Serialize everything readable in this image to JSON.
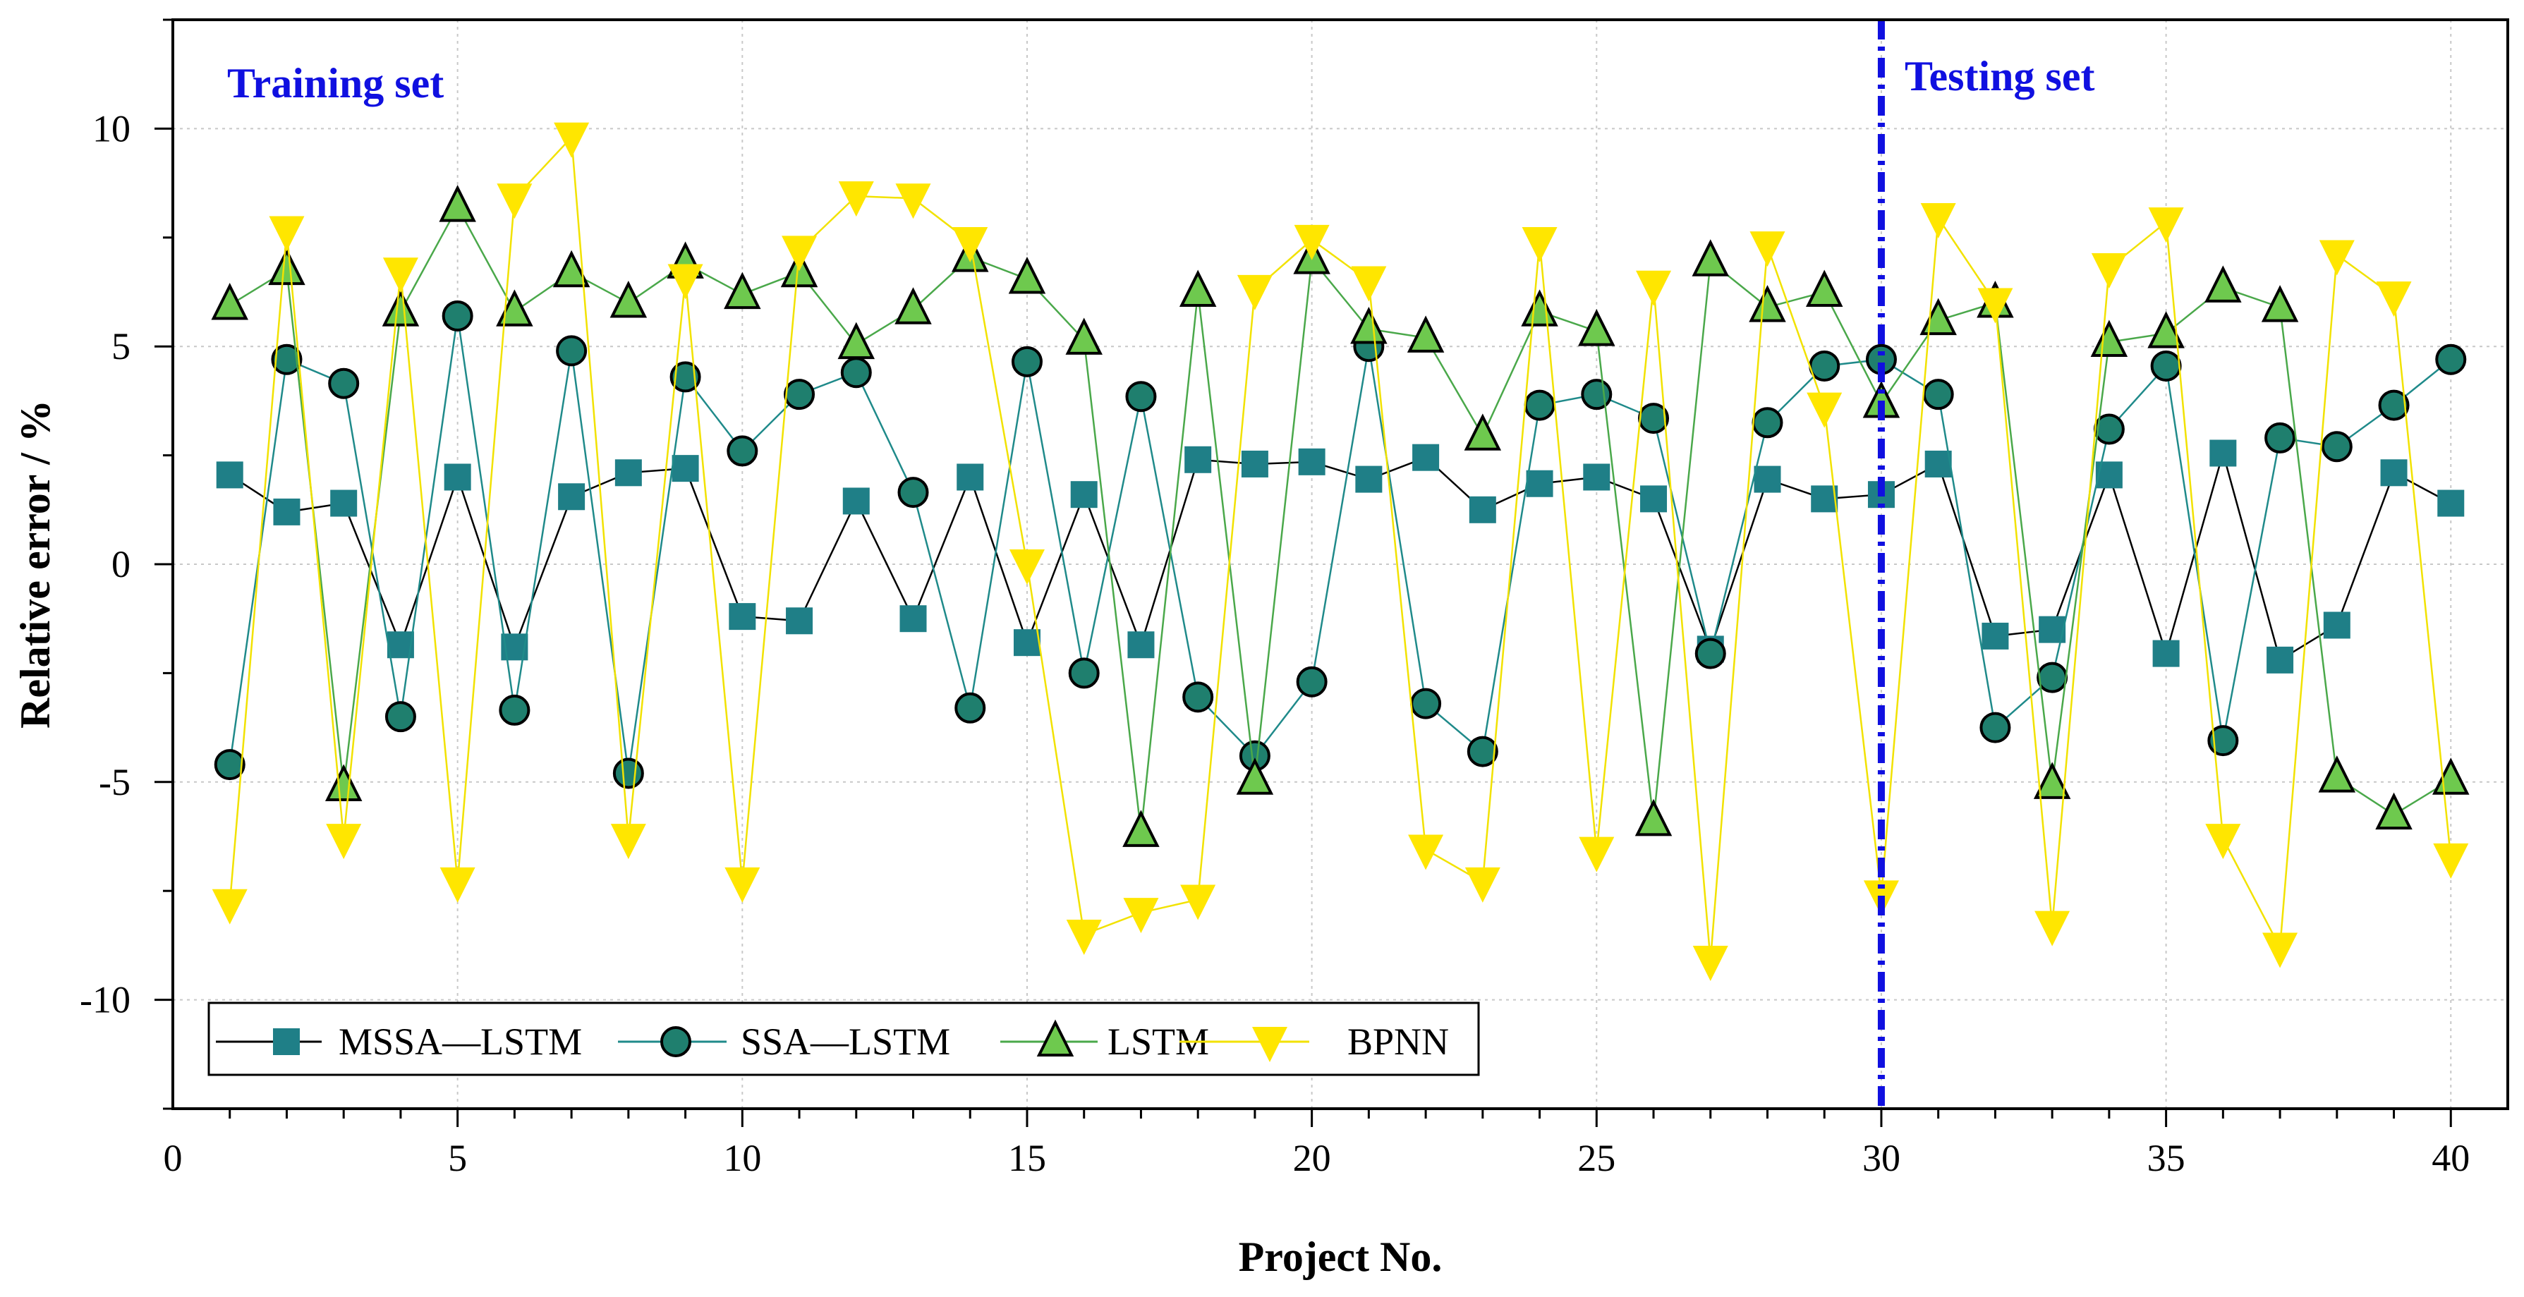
{
  "chart_data": {
    "type": "line",
    "xlabel": "Project No.",
    "ylabel": "Relative error / %",
    "xlim": [
      0,
      41
    ],
    "ylim": [
      -12.5,
      12.5
    ],
    "x_ticks": [
      0,
      5,
      10,
      15,
      20,
      25,
      30,
      35,
      40
    ],
    "y_ticks": [
      -10,
      -5,
      0,
      5,
      10
    ],
    "x_tick_labels": [
      "0",
      "5",
      "10",
      "15",
      "20",
      "25",
      "30",
      "35",
      "40"
    ],
    "y_tick_labels": [
      "-10",
      "-5",
      "0",
      "5",
      "10"
    ],
    "grid": true,
    "legend_position": "bottom-left",
    "split_x": 30,
    "annotations": {
      "training": "Training set",
      "testing": "Testing set"
    },
    "x": [
      1,
      2,
      3,
      4,
      5,
      6,
      7,
      8,
      9,
      10,
      11,
      12,
      13,
      14,
      15,
      16,
      17,
      18,
      19,
      20,
      21,
      22,
      23,
      24,
      25,
      26,
      27,
      28,
      29,
      30,
      31,
      32,
      33,
      34,
      35,
      36,
      37,
      38,
      39,
      40
    ],
    "series": [
      {
        "name": "MSSA—LSTM",
        "marker": "square",
        "line_color": "#000000",
        "fill": "#1f7f87",
        "values": [
          2.05,
          1.2,
          1.4,
          -1.85,
          2.0,
          -1.9,
          1.55,
          2.1,
          2.2,
          -1.2,
          -1.3,
          1.45,
          -1.25,
          2.0,
          -1.8,
          1.6,
          -1.85,
          2.4,
          2.3,
          2.35,
          1.95,
          2.45,
          1.25,
          1.85,
          2.0,
          1.5,
          -1.95,
          1.95,
          1.5,
          1.6,
          2.3,
          -1.65,
          -1.5,
          2.05,
          -2.05,
          2.55,
          -2.2,
          -1.4,
          2.1,
          1.4
        ]
      },
      {
        "name": "SSA—LSTM",
        "marker": "circle",
        "line_color": "#1f8a8a",
        "fill": "#1f7f6e",
        "values": [
          -4.6,
          4.7,
          4.15,
          -3.5,
          5.7,
          -3.35,
          4.9,
          -4.8,
          4.3,
          2.6,
          3.9,
          4.4,
          1.65,
          -3.3,
          4.65,
          -2.5,
          3.85,
          -3.05,
          -4.4,
          -2.7,
          5.0,
          -3.2,
          -4.3,
          3.65,
          3.9,
          3.35,
          -2.05,
          3.25,
          4.55,
          4.7,
          3.9,
          -3.75,
          -2.6,
          3.1,
          4.55,
          -4.05,
          2.9,
          2.7,
          3.65,
          4.7
        ]
      },
      {
        "name": "LSTM",
        "marker": "triangle-up",
        "line_color": "#4aa84a",
        "fill": "#6ec94e",
        "values": [
          5.95,
          6.75,
          -5.1,
          5.8,
          8.2,
          5.8,
          6.7,
          6.0,
          6.9,
          6.2,
          6.7,
          5.05,
          5.85,
          7.05,
          6.55,
          5.15,
          -6.15,
          6.25,
          -4.95,
          7.0,
          5.4,
          5.2,
          2.95,
          5.8,
          5.35,
          -5.9,
          6.95,
          5.9,
          6.25,
          3.7,
          5.6,
          6.0,
          -5.05,
          5.1,
          5.3,
          6.35,
          5.9,
          -4.9,
          -5.75,
          -4.95
        ]
      },
      {
        "name": "BPNN",
        "marker": "triangle-down",
        "line_color": "#f2e200",
        "fill": "#ffe600",
        "values": [
          -7.8,
          7.65,
          -6.3,
          6.7,
          -7.3,
          8.4,
          9.8,
          -6.3,
          6.55,
          -7.3,
          7.2,
          8.45,
          8.4,
          7.4,
          0.0,
          -8.5,
          -8.0,
          -7.7,
          6.3,
          7.45,
          6.5,
          -6.55,
          -7.3,
          7.4,
          -6.6,
          6.4,
          -9.1,
          7.3,
          3.6,
          -7.6,
          7.95,
          6.0,
          -8.3,
          6.8,
          7.85,
          -6.3,
          -8.8,
          7.1,
          6.15,
          -6.75
        ]
      }
    ]
  }
}
